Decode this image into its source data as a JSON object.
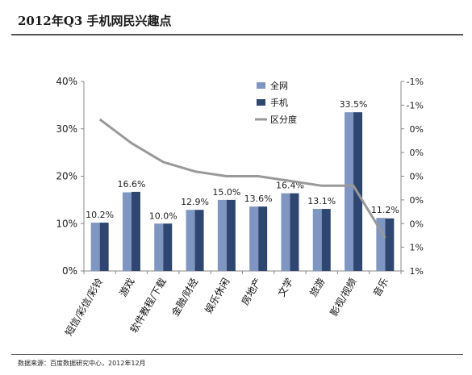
{
  "header": {
    "title": "2012年Q3 手机网民兴趣点",
    "source": "数据来源：百度数据研究中心，2012年12月"
  },
  "colors": {
    "series_quanwang": "#7f96c2",
    "series_shouji": "#2f4770",
    "line_qufendu": "#999999",
    "axis": "#888888"
  },
  "chart_data": {
    "type": "bar",
    "categories": [
      "短信/彩信/彩铃",
      "游戏",
      "软件教程/下载",
      "金融/财经",
      "娱乐休闲",
      "房地产",
      "文学",
      "旅游",
      "影视/视频",
      "音乐"
    ],
    "series": [
      {
        "name": "全网",
        "values": [
          10.2,
          16.6,
          10.0,
          12.9,
          15.0,
          13.6,
          16.4,
          13.1,
          33.5,
          11.2
        ]
      },
      {
        "name": "手机",
        "values": [
          10.2,
          16.7,
          10.0,
          12.9,
          15.0,
          13.6,
          16.4,
          13.1,
          33.5,
          11.1
        ]
      }
    ],
    "data_labels": [
      "10.2%",
      "16.6%",
      "10.0%",
      "12.9%",
      "15.0%",
      "13.6%",
      "16.4%",
      "13.1%",
      "33.5%",
      "11.2%"
    ],
    "line_series": {
      "name": "区分度",
      "axis": "right",
      "values": [
        1.2,
        0.7,
        0.3,
        0.1,
        0.0,
        0.0,
        -0.1,
        -0.2,
        -0.2,
        -1.3
      ]
    },
    "y_ticks": [
      "0%",
      "10%",
      "20%",
      "30%",
      "40%"
    ],
    "ylim": [
      0,
      40
    ],
    "y_right_ticks": [
      "-1%",
      "-1%",
      "0%",
      "0%",
      "0%",
      "0%",
      "0%",
      "1%",
      "1%"
    ],
    "y_right_lim": [
      -2,
      2
    ],
    "legend": {
      "position": "top-right",
      "entries": [
        "全网",
        "手机",
        "区分度"
      ]
    },
    "grid": false
  }
}
